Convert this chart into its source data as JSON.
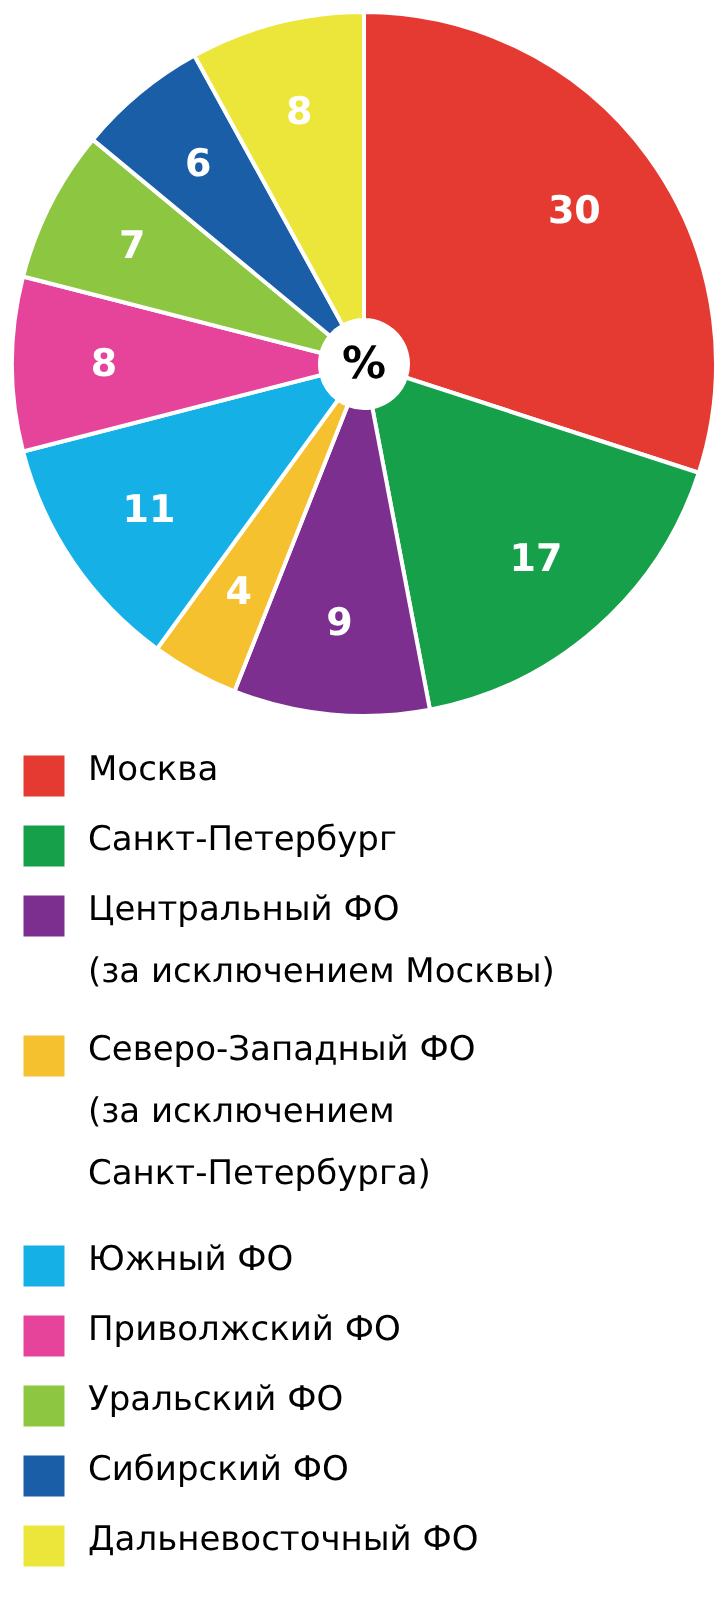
{
  "chart_data": {
    "type": "donut",
    "categories": [
      "Москва",
      "Санкт-Петербург",
      "Центральный ФО (за исключением Москвы)",
      "Северо-Западный ФО (за исключением Санкт-Петербурга)",
      "Южный ФО",
      "Приволжский ФО",
      "Уральский ФО",
      "Сибирский ФО",
      "Дальневосточный ФО"
    ],
    "values": [
      30,
      17,
      9,
      4,
      11,
      8,
      7,
      6,
      8
    ],
    "colors": [
      "#e53a32",
      "#16a04a",
      "#7c2f8e",
      "#f5c12e",
      "#15b0e6",
      "#e5449a",
      "#8dc640",
      "#1a5ea8",
      "#ece63a"
    ],
    "data_labels": true,
    "legend": "bottom",
    "annotations": [
      "%"
    ]
  }
}
